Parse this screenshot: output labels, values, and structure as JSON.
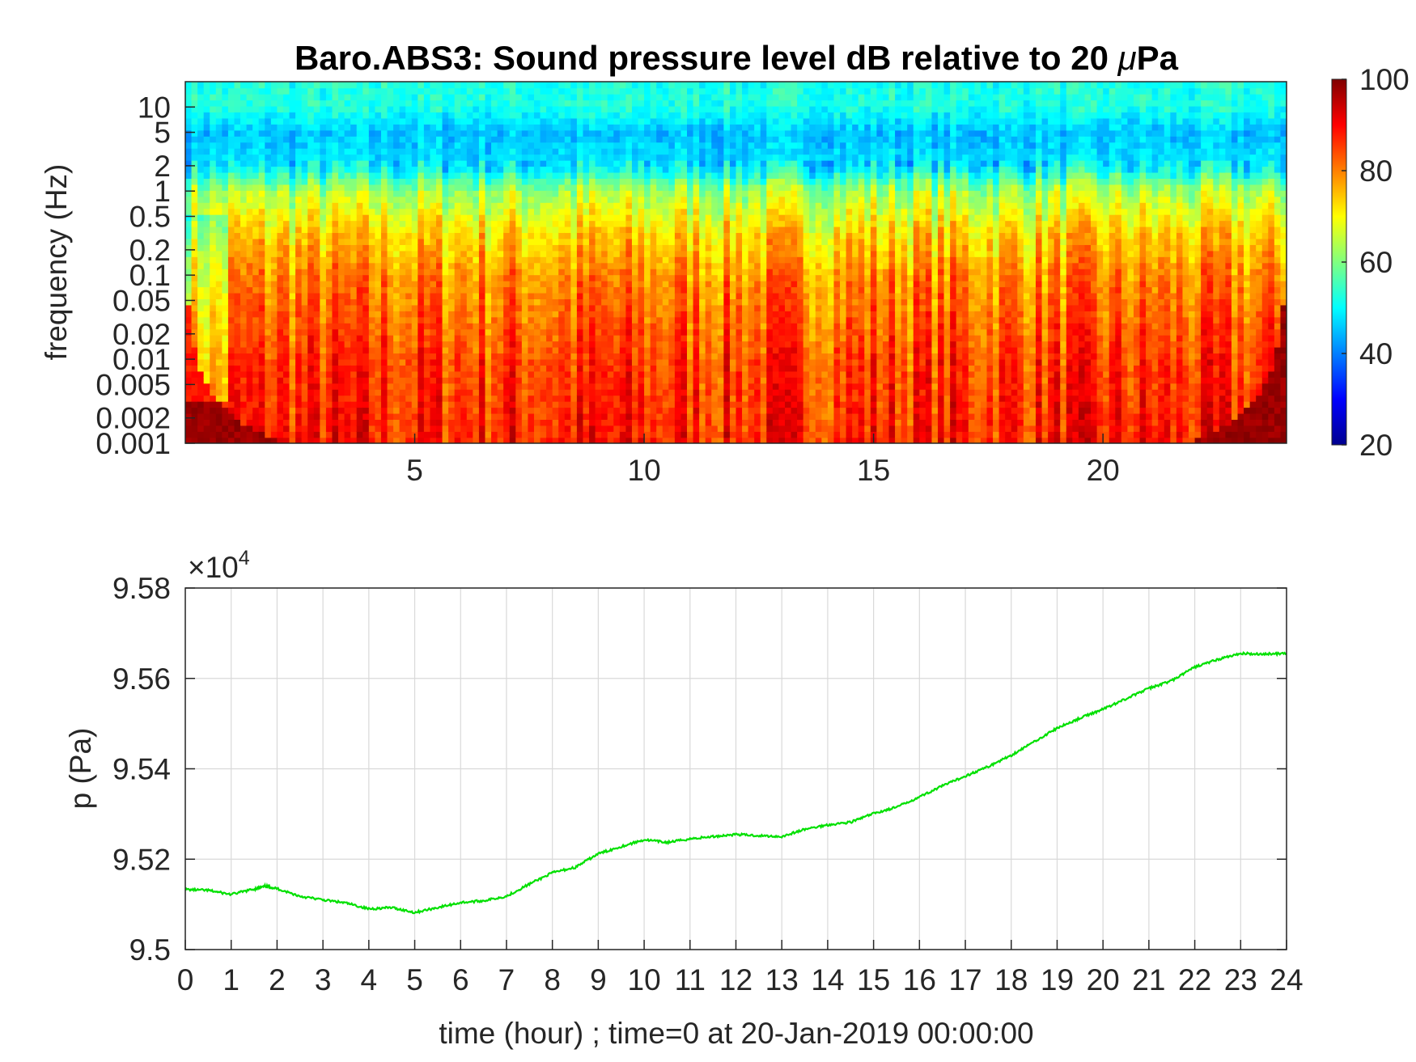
{
  "chart_data": [
    {
      "type": "heatmap",
      "title": "Baro.ABS3: Sound pressure level dB relative to 20 μPa",
      "title_parts": {
        "text": "Baro.ABS3: Sound pressure level dB relative to 20 ",
        "mu": "μ",
        "unit": "Pa"
      },
      "ylabel": "frequency (Hz)",
      "xlabel": "",
      "y_scale": "log",
      "ylim": [
        0.001,
        20
      ],
      "xlim": [
        0,
        24
      ],
      "x_ticks": [
        5,
        10,
        15,
        20
      ],
      "x_tick_labels": [
        "5",
        "10",
        "15",
        "20"
      ],
      "y_ticks": [
        0.001,
        0.002,
        0.005,
        0.01,
        0.02,
        0.05,
        0.1,
        0.2,
        0.5,
        1,
        2,
        5,
        10
      ],
      "y_tick_labels": [
        "0.001",
        "0.002",
        "0.005",
        "0.01",
        "0.02",
        "0.05",
        "0.1",
        "0.2",
        "0.5",
        "1",
        "2",
        "5",
        "10"
      ],
      "colorbar": {
        "range": [
          20,
          100
        ],
        "ticks": [
          "20",
          "40",
          "60",
          "80",
          "100"
        ],
        "colormap": "jet"
      },
      "description_bands": [
        {
          "freq_range": [
            5,
            20
          ],
          "level_db": 52
        },
        {
          "freq_range": [
            2,
            5
          ],
          "level_db": 45
        },
        {
          "freq_range": [
            0.5,
            2
          ],
          "level_db": 62
        },
        {
          "freq_range": [
            0.1,
            0.5
          ],
          "level_db": 75
        },
        {
          "freq_range": [
            0.01,
            0.1
          ],
          "level_db": 82
        },
        {
          "freq_range": [
            0.001,
            0.01
          ],
          "level_db": 86
        }
      ]
    },
    {
      "type": "line",
      "title": "",
      "xlabel": "time (hour) ; time=0 at 20-Jan-2019 00:00:00",
      "ylabel": "p (Pa)",
      "xlim": [
        0,
        24
      ],
      "ylim": [
        95000,
        95800
      ],
      "y_exponent_label": {
        "times": "×",
        "base": "10",
        "exp": "4"
      },
      "x_ticks": [
        "0",
        "1",
        "2",
        "3",
        "4",
        "5",
        "6",
        "7",
        "8",
        "9",
        "10",
        "11",
        "12",
        "13",
        "14",
        "15",
        "16",
        "17",
        "18",
        "19",
        "20",
        "21",
        "22",
        "23",
        "24"
      ],
      "y_ticks": [
        95000,
        95200,
        95400,
        95600,
        95800
      ],
      "y_tick_labels": [
        "9.5",
        "9.52",
        "9.54",
        "9.56",
        "9.58"
      ],
      "grid": true,
      "series": [
        {
          "color": "#00e000",
          "x": [
            0,
            0.5,
            1,
            1.5,
            1.75,
            2,
            2.5,
            3,
            3.5,
            4,
            4.5,
            5,
            5.5,
            6,
            6.5,
            7,
            7.5,
            8,
            8.5,
            9,
            9.5,
            10,
            10.5,
            11,
            11.5,
            12,
            12.5,
            13,
            13.5,
            14,
            14.5,
            15,
            15.5,
            16,
            16.5,
            17,
            17.5,
            18,
            18.5,
            19,
            19.5,
            20,
            20.5,
            21,
            21.5,
            22,
            22.5,
            23,
            23.5,
            24
          ],
          "y": [
            95133,
            95131,
            95122,
            95134,
            95140,
            95135,
            95118,
            95110,
            95103,
            95090,
            95093,
            95082,
            95093,
            95104,
            95108,
            95118,
            95145,
            95170,
            95182,
            95212,
            95228,
            95243,
            95237,
            95245,
            95250,
            95255,
            95252,
            95250,
            95266,
            95276,
            95282,
            95301,
            95315,
            95338,
            95362,
            95384,
            95405,
            95430,
            95460,
            95490,
            95512,
            95532,
            95555,
            95578,
            95595,
            95625,
            95642,
            95655,
            95654,
            95655
          ]
        }
      ]
    }
  ]
}
